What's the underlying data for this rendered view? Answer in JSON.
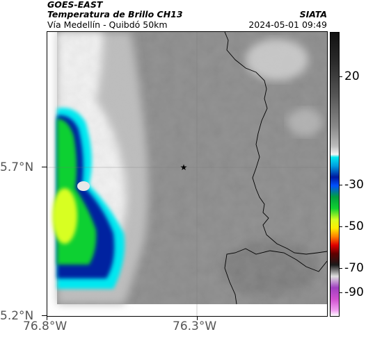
{
  "header": {
    "satellite": "GOES-EAST",
    "product": "Temperatura de Brillo CH13",
    "region": "Vía Medellín - Quibdó 50km",
    "org": "SIATA",
    "datetime": "2024-05-01 09:49"
  },
  "axes": {
    "lat_labels": [
      "5.7°N",
      "5.2°N"
    ],
    "lon_labels": [
      "76.8°W",
      "76.3°W"
    ]
  },
  "colorbar": {
    "tick_labels": [
      "20",
      "-30",
      "-50",
      "-70",
      "-90"
    ]
  },
  "marker": {
    "icon": "star-marker-icon"
  },
  "colors": {
    "cold_cloud": "#00ff20",
    "deep_cold": "#001880",
    "cyan": "#00e8f0",
    "yellow": "#d8ff20"
  }
}
